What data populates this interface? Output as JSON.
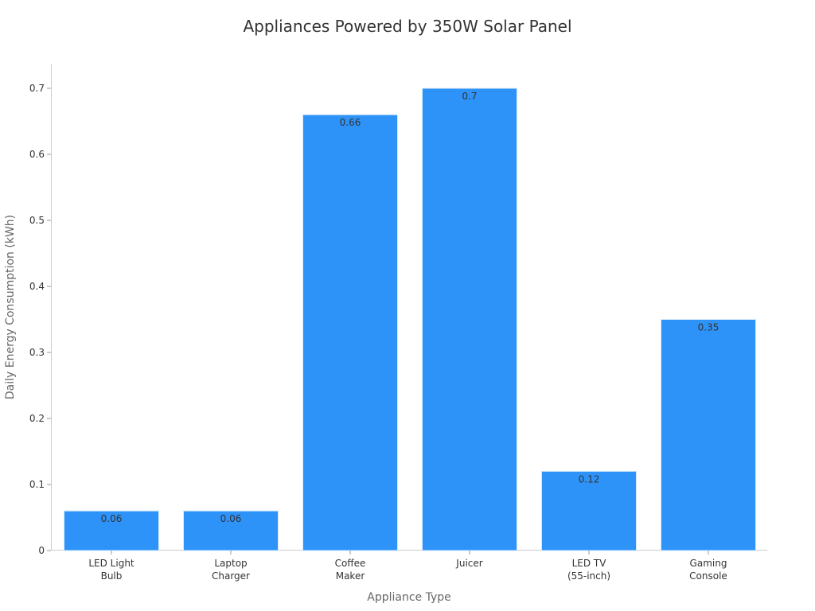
{
  "chart_data": {
    "type": "bar",
    "title": "Appliances Powered by 350W Solar Panel",
    "xlabel": "Appliance Type",
    "ylabel": "Daily Energy Consumption (kWh)",
    "categories": [
      [
        "LED Light",
        "Bulb"
      ],
      [
        "Laptop",
        "Charger"
      ],
      [
        "Coffee",
        "Maker"
      ],
      [
        "Juicer"
      ],
      [
        "LED TV",
        "(55-inch)"
      ],
      [
        "Gaming",
        "Console"
      ]
    ],
    "values": [
      0.06,
      0.06,
      0.66,
      0.7,
      0.12,
      0.35
    ],
    "value_labels": [
      "0.06",
      "0.06",
      "0.66",
      "0.7",
      "0.12",
      "0.35"
    ],
    "yticks": [
      0,
      0.1,
      0.2,
      0.3,
      0.4,
      0.5,
      0.6,
      0.7
    ],
    "ytick_labels": [
      "0",
      "0.1",
      "0.2",
      "0.3",
      "0.4",
      "0.5",
      "0.6",
      "0.7"
    ],
    "ylim": [
      0,
      0.7
    ],
    "grid": false,
    "legend": "none",
    "bar_color": "#2E93F9",
    "bar_edge_color": "#D6E9FB"
  }
}
